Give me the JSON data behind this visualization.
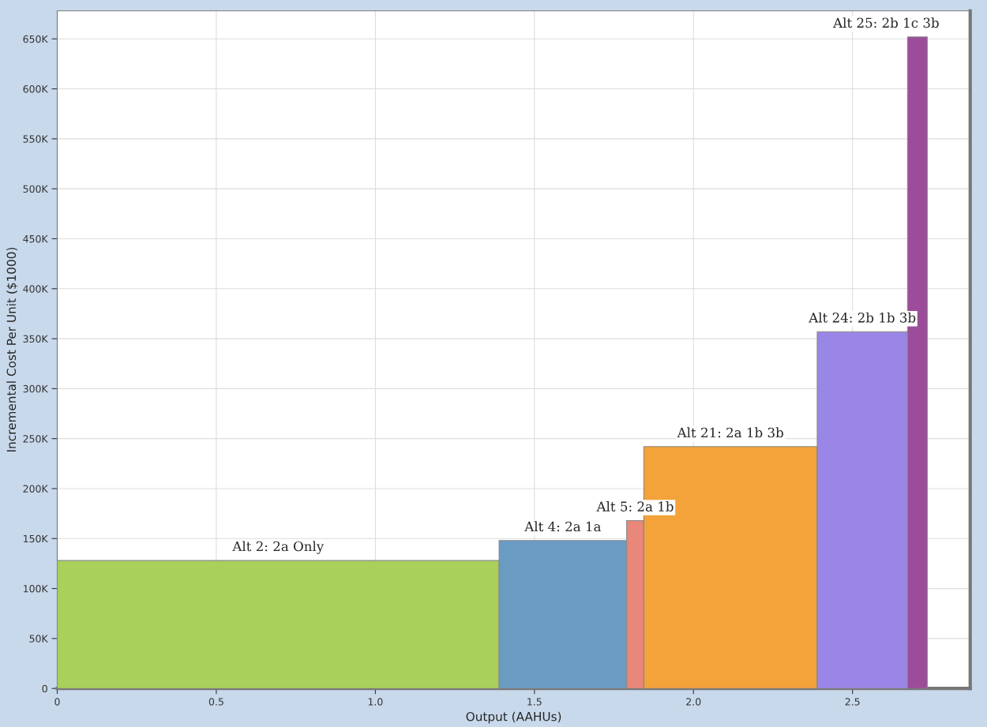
{
  "chart_data": {
    "type": "histogram",
    "xlabel": "Output (AAHUs)",
    "ylabel": "Incremental Cost Per Unit ($1000)",
    "bins": [
      0,
      1.389,
      1.79,
      1.844,
      2.389,
      2.673,
      2.735
    ],
    "values": [
      128000,
      148000,
      168000,
      242000,
      357000,
      652000
    ],
    "colors": [
      "#a8d05a",
      "#6a9bc3",
      "#e8877a",
      "#f4a23a",
      "#9a86e6",
      "#9c4d9a"
    ],
    "annotations": [
      {
        "text": "Alt 2: 2a Only",
        "x": 0.6945,
        "y": 128000
      },
      {
        "text": "Alt 4: 2a 1a",
        "x": 1.5895,
        "y": 148000
      },
      {
        "text": "Alt 5: 2a 1b",
        "x": 1.817,
        "y": 168000
      },
      {
        "text": "Alt 21: 2a 1b 3b",
        "x": 2.1165,
        "y": 242000
      },
      {
        "text": "Alt 24: 2b 1b 3b",
        "x": 2.531,
        "y": 357000
      },
      {
        "text": "Alt 25: 2b 1c 3b",
        "x": 2.704,
        "y": 652000
      }
    ],
    "xlim": [
      0,
      2.87
    ],
    "xticks": [
      {
        "value": 0,
        "label": "0"
      },
      0.5,
      {
        "value": 1.0,
        "label": "1.0"
      },
      1.5,
      {
        "value": 2.0,
        "label": "2.0"
      },
      2.5
    ],
    "ylim": [
      0,
      678000
    ],
    "yticks": [
      {
        "value": 0,
        "label": "0"
      },
      {
        "value": 50000,
        "label": "50K"
      },
      {
        "value": 100000,
        "label": "100K"
      },
      {
        "value": 150000,
        "label": "150K"
      },
      {
        "value": 200000,
        "label": "200K"
      },
      {
        "value": 250000,
        "label": "250K"
      },
      {
        "value": 300000,
        "label": "300K"
      },
      {
        "value": 350000,
        "label": "350K"
      },
      {
        "value": 400000,
        "label": "400K"
      },
      {
        "value": 450000,
        "label": "450K"
      },
      {
        "value": 500000,
        "label": "500K"
      },
      {
        "value": 550000,
        "label": "550K"
      },
      {
        "value": 600000,
        "label": "600K"
      },
      {
        "value": 650000,
        "label": "650K"
      }
    ],
    "grid": true
  }
}
